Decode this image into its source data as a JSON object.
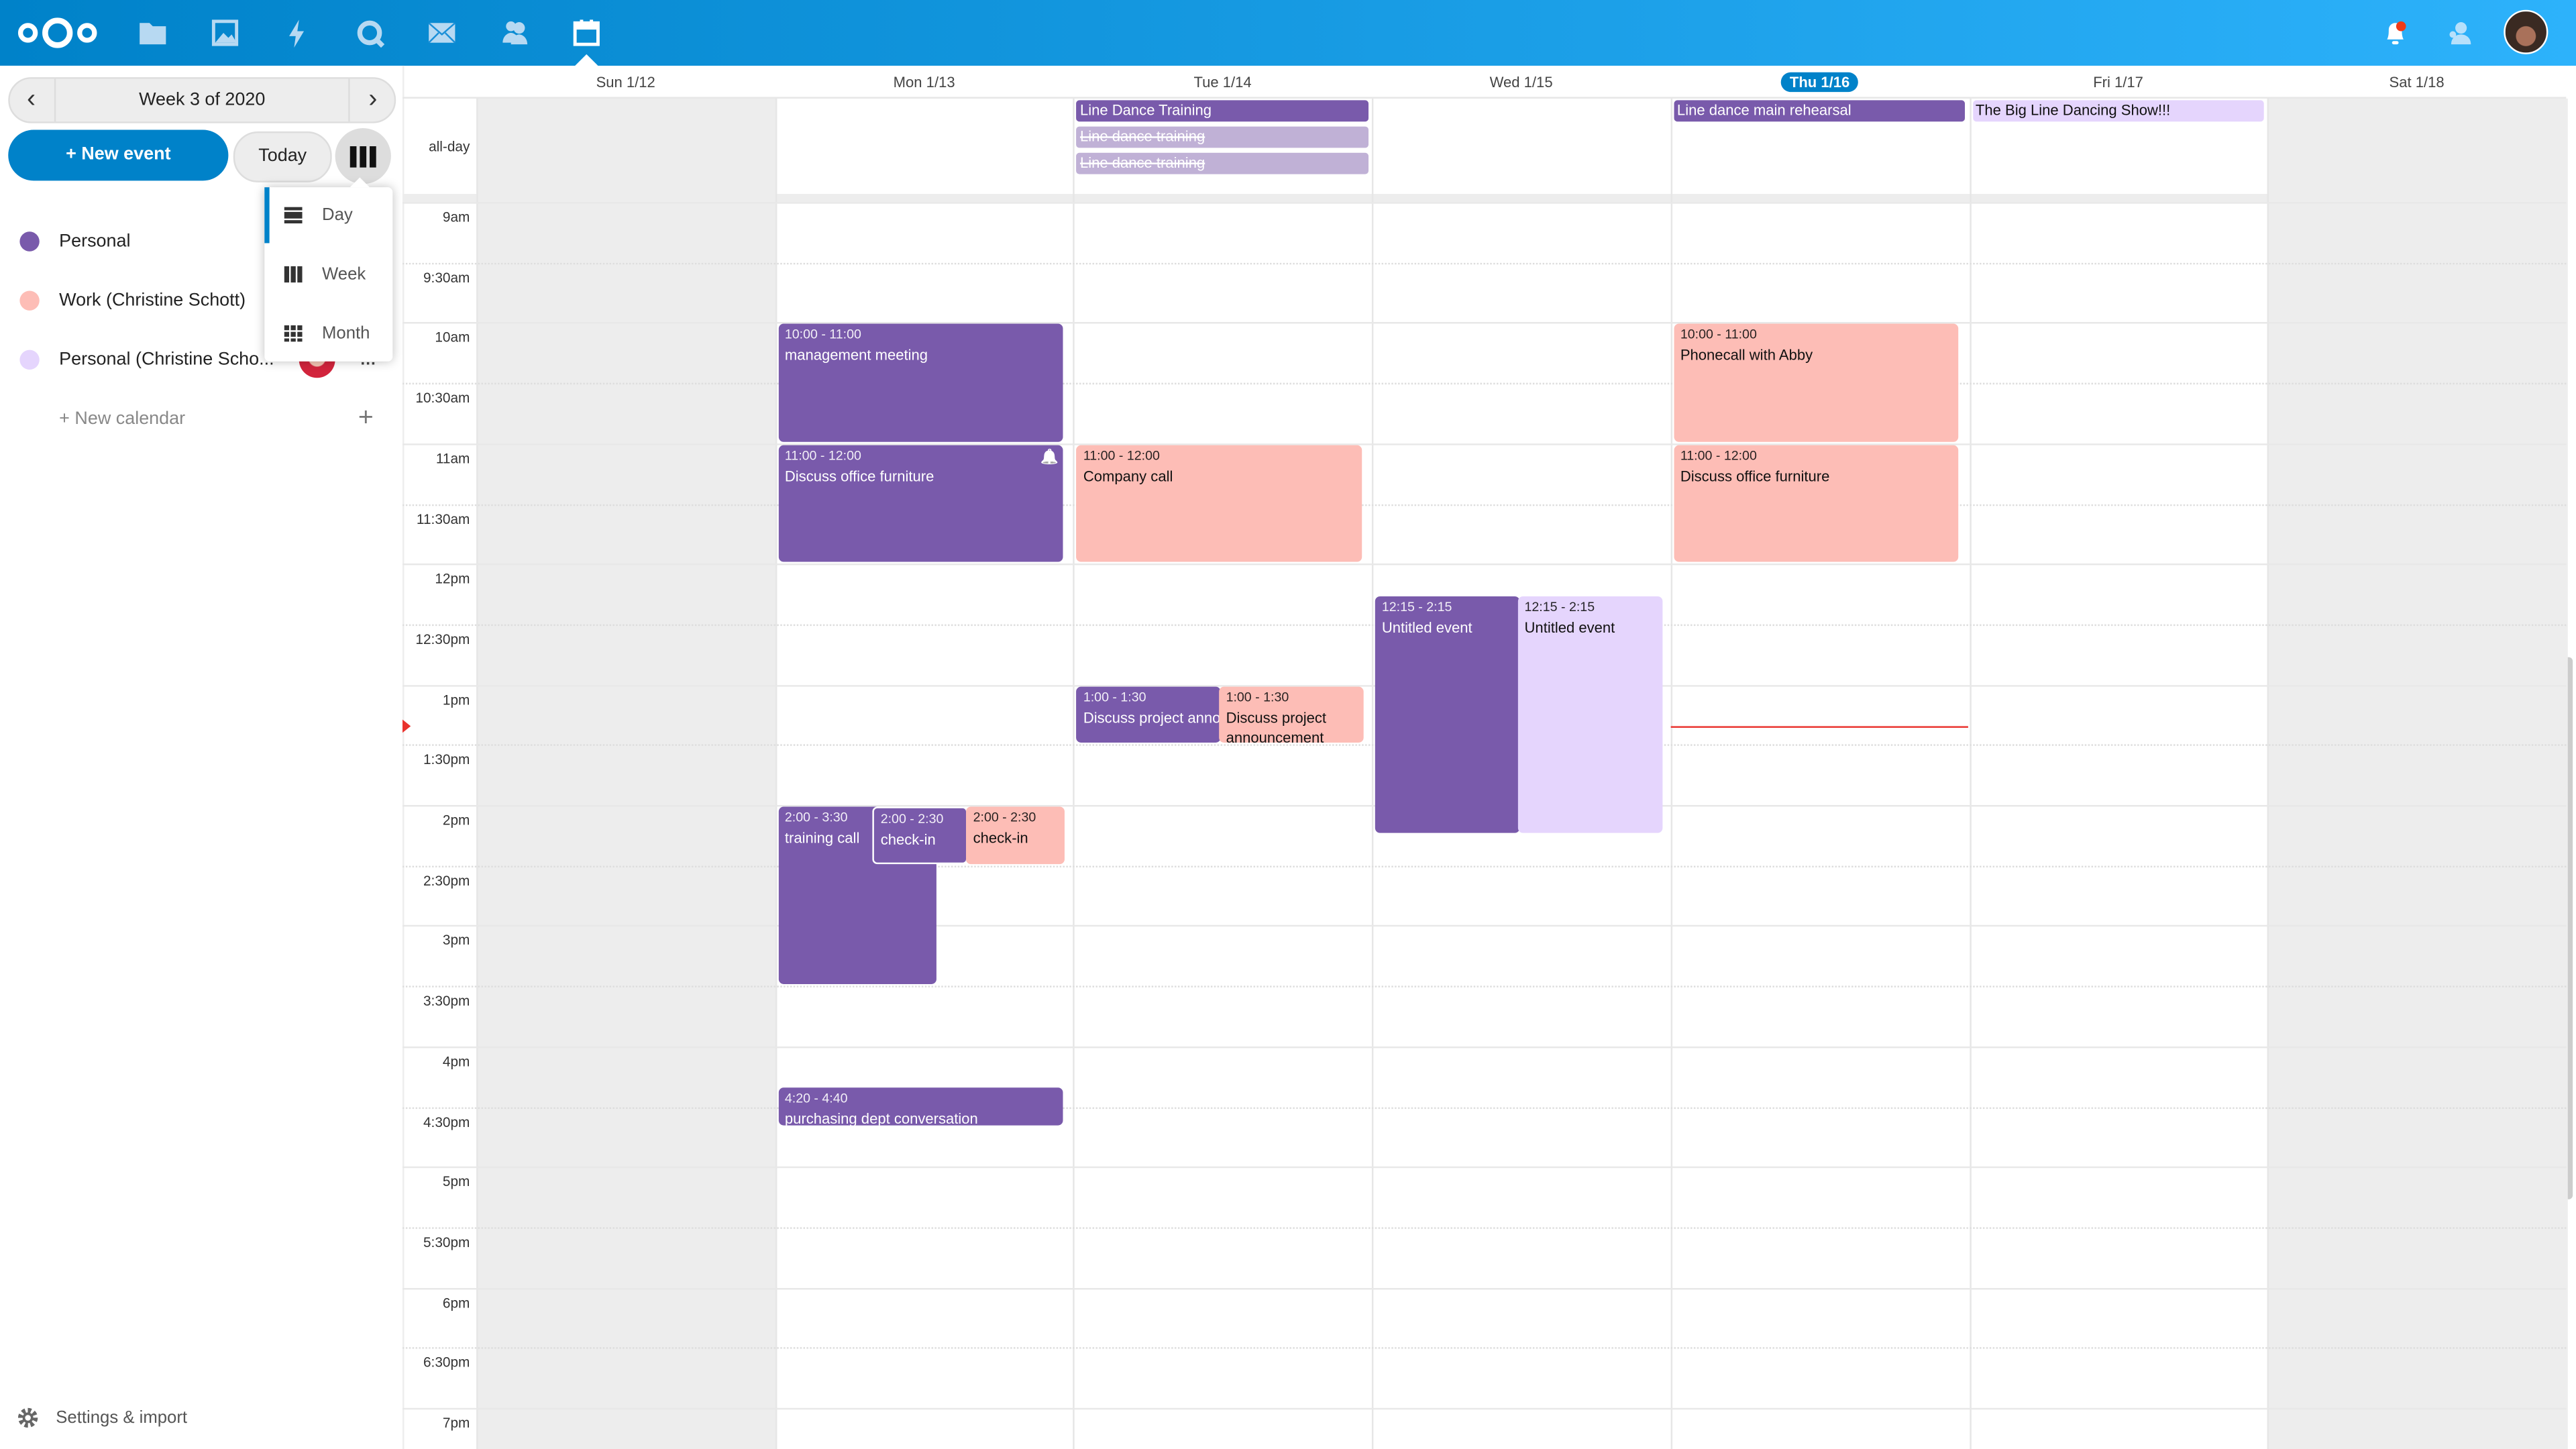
{
  "colors": {
    "header_start": "#0082c9",
    "header_end": "#2db2fb",
    "personal": "#795aab",
    "work": "#fdbdb6",
    "personal_cs": "#e5d5fd",
    "cancelled": "#c0b1d6",
    "now_line": "#e9322d"
  },
  "header": {
    "apps": [
      "logo",
      "files-icon",
      "photos-icon",
      "activity-icon",
      "talk-icon",
      "mail-icon",
      "contacts-icon",
      "calendar-icon"
    ],
    "active_app": "calendar-icon",
    "right": [
      "notifications-icon",
      "contacts-menu-icon",
      "user-avatar"
    ]
  },
  "sidebar": {
    "week_label": "Week 3 of 2020",
    "new_event": "+ New event",
    "today": "Today",
    "view_menu": [
      {
        "label": "Day",
        "selected": true
      },
      {
        "label": "Week",
        "selected": false
      },
      {
        "label": "Month",
        "selected": false
      }
    ],
    "calendars": [
      {
        "label": "Personal",
        "color": "#795aab"
      },
      {
        "label": "Work (Christine Schott)",
        "color": "#fdbdb6"
      },
      {
        "label": "Personal (Christine Scho...",
        "color": "#e5d5fd",
        "shared": true
      }
    ],
    "new_calendar": "+ New calendar",
    "settings": "Settings & import"
  },
  "calendar": {
    "all_day_label": "all-day",
    "days": [
      {
        "label": "Sun 1/12",
        "weekend": true
      },
      {
        "label": "Mon 1/13"
      },
      {
        "label": "Tue 1/14"
      },
      {
        "label": "Wed 1/15"
      },
      {
        "label": "Thu 1/16",
        "today": true
      },
      {
        "label": "Fri 1/17"
      },
      {
        "label": "Sat 1/18",
        "weekend": true
      }
    ],
    "time_labels": [
      "9am",
      "9:30am",
      "10am",
      "10:30am",
      "11am",
      "11:30am",
      "12pm",
      "12:30pm",
      "1pm",
      "1:30pm",
      "2pm",
      "2:30pm",
      "3pm",
      "3:30pm",
      "4pm",
      "4:30pm",
      "5pm",
      "5:30pm",
      "6pm",
      "6:30pm",
      "7pm"
    ],
    "now_time": "13:21",
    "all_day_events": [
      {
        "day": 2,
        "title": "Line Dance Training",
        "calendar": "personal"
      },
      {
        "day": 2,
        "title": "Line dance training",
        "calendar": "personal",
        "cancelled": true
      },
      {
        "day": 2,
        "title": "Line dance training",
        "calendar": "personal",
        "cancelled": true
      },
      {
        "day": 4,
        "title": "Line dance main rehearsal",
        "calendar": "personal"
      },
      {
        "day": 5,
        "title": "The Big Line Dancing Show!!!",
        "calendar": "personal_cs"
      }
    ],
    "events": [
      {
        "day": 1,
        "start": "10:00",
        "end": "11:00",
        "time": "10:00 - 11:00",
        "title": "management meeting",
        "calendar": "personal"
      },
      {
        "day": 1,
        "start": "11:00",
        "end": "12:00",
        "time": "11:00 - 12:00",
        "title": "Discuss office furniture",
        "calendar": "personal",
        "alarm": true
      },
      {
        "day": 1,
        "start": "14:00",
        "end": "15:30",
        "time": "2:00 - 3:30",
        "title": "training call",
        "calendar": "personal"
      },
      {
        "day": 1,
        "start": "14:00",
        "end": "14:30",
        "time": "2:00 - 2:30",
        "title": "check-in",
        "calendar": "personal"
      },
      {
        "day": 1,
        "start": "14:00",
        "end": "14:30",
        "time": "2:00 - 2:30",
        "title": "check-in",
        "calendar": "work"
      },
      {
        "day": 1,
        "start": "16:20",
        "end": "16:40",
        "time": "4:20 - 4:40",
        "title": "purchasing dept conversation",
        "calendar": "personal"
      },
      {
        "day": 2,
        "start": "11:00",
        "end": "12:00",
        "time": "11:00 - 12:00",
        "title": "Company call",
        "calendar": "work"
      },
      {
        "day": 2,
        "start": "13:00",
        "end": "13:30",
        "time": "1:00 - 1:30",
        "title": "Discuss project announcement",
        "calendar": "personal"
      },
      {
        "day": 2,
        "start": "13:00",
        "end": "13:30",
        "time": "1:00 - 1:30",
        "title": "Discuss project announcement",
        "calendar": "work"
      },
      {
        "day": 3,
        "start": "12:15",
        "end": "14:15",
        "time": "12:15 - 2:15",
        "title": "Untitled event",
        "calendar": "personal"
      },
      {
        "day": 3,
        "start": "12:15",
        "end": "14:15",
        "time": "12:15 - 2:15",
        "title": "Untitled event",
        "calendar": "personal_cs"
      },
      {
        "day": 4,
        "start": "10:00",
        "end": "11:00",
        "time": "10:00 - 11:00",
        "title": "Phonecall with Abby",
        "calendar": "work"
      },
      {
        "day": 4,
        "start": "11:00",
        "end": "12:00",
        "time": "11:00 - 12:00",
        "title": "Discuss office furniture",
        "calendar": "work"
      }
    ]
  }
}
